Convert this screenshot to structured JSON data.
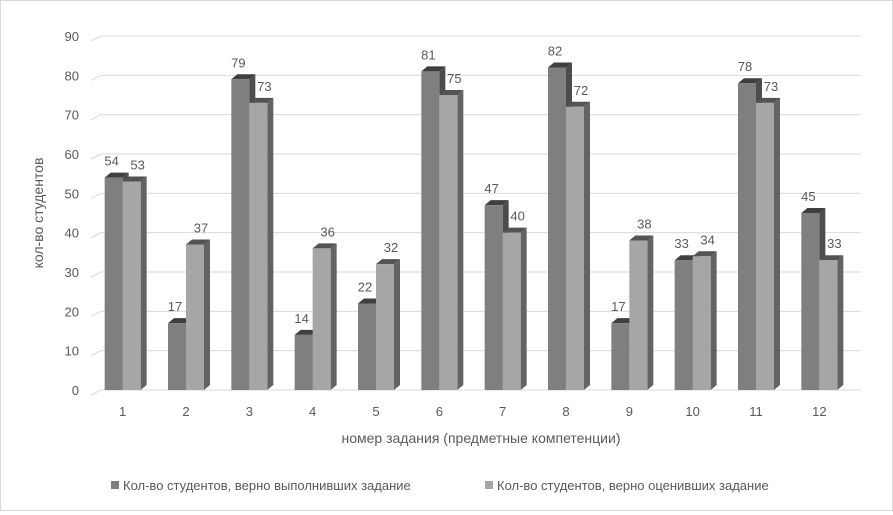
{
  "chart_data": {
    "type": "bar",
    "style": "3d-clustered-column",
    "title": "",
    "xlabel": "номер задания (предметные компетенции)",
    "ylabel": "кол-во студентов",
    "ylim": [
      0,
      90
    ],
    "yticks": [
      0,
      10,
      20,
      30,
      40,
      50,
      60,
      70,
      80,
      90
    ],
    "grid": true,
    "legend_position": "bottom",
    "categories": [
      "1",
      "2",
      "3",
      "4",
      "5",
      "6",
      "7",
      "8",
      "9",
      "10",
      "11",
      "12"
    ],
    "series": [
      {
        "name": "Кол-во студентов, верно выполнивших задание",
        "color": "#7f7f7f",
        "values": [
          54,
          17,
          79,
          14,
          22,
          81,
          47,
          82,
          17,
          33,
          78,
          45
        ]
      },
      {
        "name": "Кол-во студентов, верно оценивших задание",
        "color": "#a6a6a6",
        "values": [
          53,
          37,
          73,
          36,
          32,
          75,
          40,
          72,
          38,
          34,
          73,
          33
        ]
      }
    ]
  }
}
